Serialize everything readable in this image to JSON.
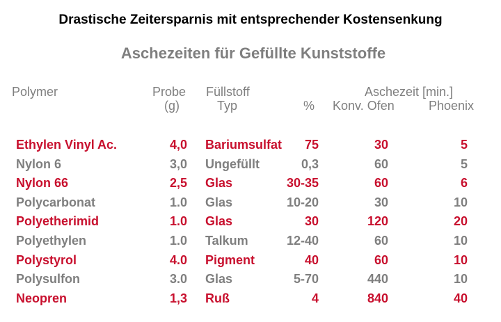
{
  "headline": "Drastische Zeitersparnis mit entsprechender Kostensenkung",
  "subtitle": "Aschezeiten für Gefüllte Kunststoffe",
  "headers": {
    "polymer": "Polymer",
    "probe": "Probe",
    "probe_unit": "(g)",
    "fuellstoff": "Füllstoff",
    "typ": "Typ",
    "percent": "%",
    "aschezeit": "Aschezeit [min.]",
    "konv_ofen": "Konv. Ofen",
    "phoenix": "Phoenix"
  },
  "colors": {
    "highlight": "#c8102e",
    "muted": "#7f7f7f",
    "headline": "#000000"
  },
  "rows": [
    {
      "polymer": "Ethylen Vinyl Ac.",
      "probe": "4,0",
      "fuellstoff": "Bariumsulfat",
      "percent": "75",
      "konv_ofen": "30",
      "phoenix": "5",
      "highlight": true
    },
    {
      "polymer": "Nylon 6",
      "probe": "3,0",
      "fuellstoff": "Ungefüllt",
      "percent": "0,3",
      "konv_ofen": "60",
      "phoenix": "5",
      "highlight": false
    },
    {
      "polymer": "Nylon 66",
      "probe": "2,5",
      "fuellstoff": "Glas",
      "percent": "30-35",
      "konv_ofen": "60",
      "phoenix": "6",
      "highlight": true
    },
    {
      "polymer": "Polycarbonat",
      "probe": "1.0",
      "fuellstoff": "Glas",
      "percent": "10-20",
      "konv_ofen": "30",
      "phoenix": "10",
      "highlight": false
    },
    {
      "polymer": "Polyetherimid",
      "probe": "1.0",
      "fuellstoff": "Glas",
      "percent": "30",
      "konv_ofen": "120",
      "phoenix": "20",
      "highlight": true
    },
    {
      "polymer": "Polyethylen",
      "probe": "1.0",
      "fuellstoff": "Talkum",
      "percent": "12-40",
      "konv_ofen": "60",
      "phoenix": "10",
      "highlight": false
    },
    {
      "polymer": "Polystyrol",
      "probe": "4.0",
      "fuellstoff": "Pigment",
      "percent": "40",
      "konv_ofen": "60",
      "phoenix": "10",
      "highlight": true
    },
    {
      "polymer": "Polysulfon",
      "probe": "3.0",
      "fuellstoff": "Glas",
      "percent": "5-70",
      "konv_ofen": "440",
      "phoenix": "10",
      "highlight": false
    },
    {
      "polymer": "Neopren",
      "probe": "1,3",
      "fuellstoff": "Ruß",
      "percent": "4",
      "konv_ofen": "840",
      "phoenix": "40",
      "highlight": true
    }
  ]
}
